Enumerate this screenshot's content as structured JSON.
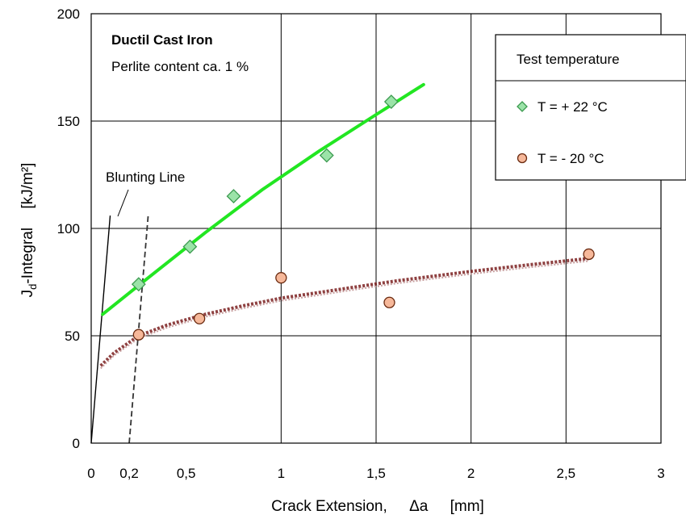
{
  "chart_data": {
    "type": "scatter",
    "xlabel": "Crack Extension,",
    "xlabel_symbol": "Δa",
    "xlabel_unit": "[mm]",
    "ylabel_main": "J",
    "ylabel_sub": "d",
    "ylabel_rest": "-Integral",
    "ylabel_unit": "[kJ/m²]",
    "xlim": [
      0,
      3
    ],
    "ylim": [
      0,
      200
    ],
    "x_ticks": [
      {
        "value": 0,
        "label": "0"
      },
      {
        "value": 0.2,
        "label": "0,2"
      },
      {
        "value": 0.5,
        "label": "0,5"
      },
      {
        "value": 1,
        "label": "1"
      },
      {
        "value": 1.5,
        "label": "1,5"
      },
      {
        "value": 2,
        "label": "2"
      },
      {
        "value": 2.5,
        "label": "2,5"
      },
      {
        "value": 3,
        "label": "3"
      }
    ],
    "y_ticks": [
      {
        "value": 0,
        "label": "0"
      },
      {
        "value": 50,
        "label": "50"
      },
      {
        "value": 100,
        "label": "100"
      },
      {
        "value": 150,
        "label": "150"
      },
      {
        "value": 200,
        "label": "200"
      }
    ],
    "grid": true,
    "annotations": {
      "material": "Ductil Cast Iron",
      "perlite": "Perlite content ca. 1 %",
      "blunting": "Blunting Line"
    },
    "legend": {
      "title": "Test  temperature",
      "placement": "top-right"
    },
    "series": [
      {
        "name": "T = + 22 °C",
        "marker": "diamond",
        "marker_color": "#9be3a8",
        "marker_edge": "#3c9a50",
        "fit_color": "#22e622",
        "points": [
          [
            0.25,
            74
          ],
          [
            0.52,
            91.5
          ],
          [
            0.75,
            115
          ],
          [
            1.24,
            134
          ],
          [
            1.58,
            159
          ]
        ],
        "fit": [
          [
            0.06,
            60
          ],
          [
            0.3,
            77
          ],
          [
            0.6,
            98
          ],
          [
            0.9,
            118
          ],
          [
            1.2,
            136
          ],
          [
            1.5,
            153
          ],
          [
            1.75,
            167
          ]
        ]
      },
      {
        "name": "T =  - 20 °C",
        "marker": "circle",
        "marker_color": "#f6b89a",
        "marker_edge": "#6a2a10",
        "fit_color": "#7a1e1e",
        "points": [
          [
            0.25,
            50.5
          ],
          [
            0.57,
            58
          ],
          [
            1.0,
            77
          ],
          [
            1.57,
            65.5
          ],
          [
            2.62,
            88
          ]
        ],
        "fit": [
          [
            0.05,
            36
          ],
          [
            0.12,
            42
          ],
          [
            0.25,
            50
          ],
          [
            0.4,
            55
          ],
          [
            0.6,
            60
          ],
          [
            0.8,
            64
          ],
          [
            1.0,
            67.5
          ],
          [
            1.3,
            71.5
          ],
          [
            1.6,
            75.5
          ],
          [
            2.0,
            80
          ],
          [
            2.3,
            83
          ],
          [
            2.62,
            86
          ]
        ]
      }
    ],
    "blunting_lines": [
      {
        "style": "solid",
        "points": [
          [
            0,
            0
          ],
          [
            0.1,
            106
          ]
        ]
      },
      {
        "style": "dashed",
        "points": [
          [
            0.2,
            0
          ],
          [
            0.3,
            106
          ]
        ]
      }
    ]
  }
}
